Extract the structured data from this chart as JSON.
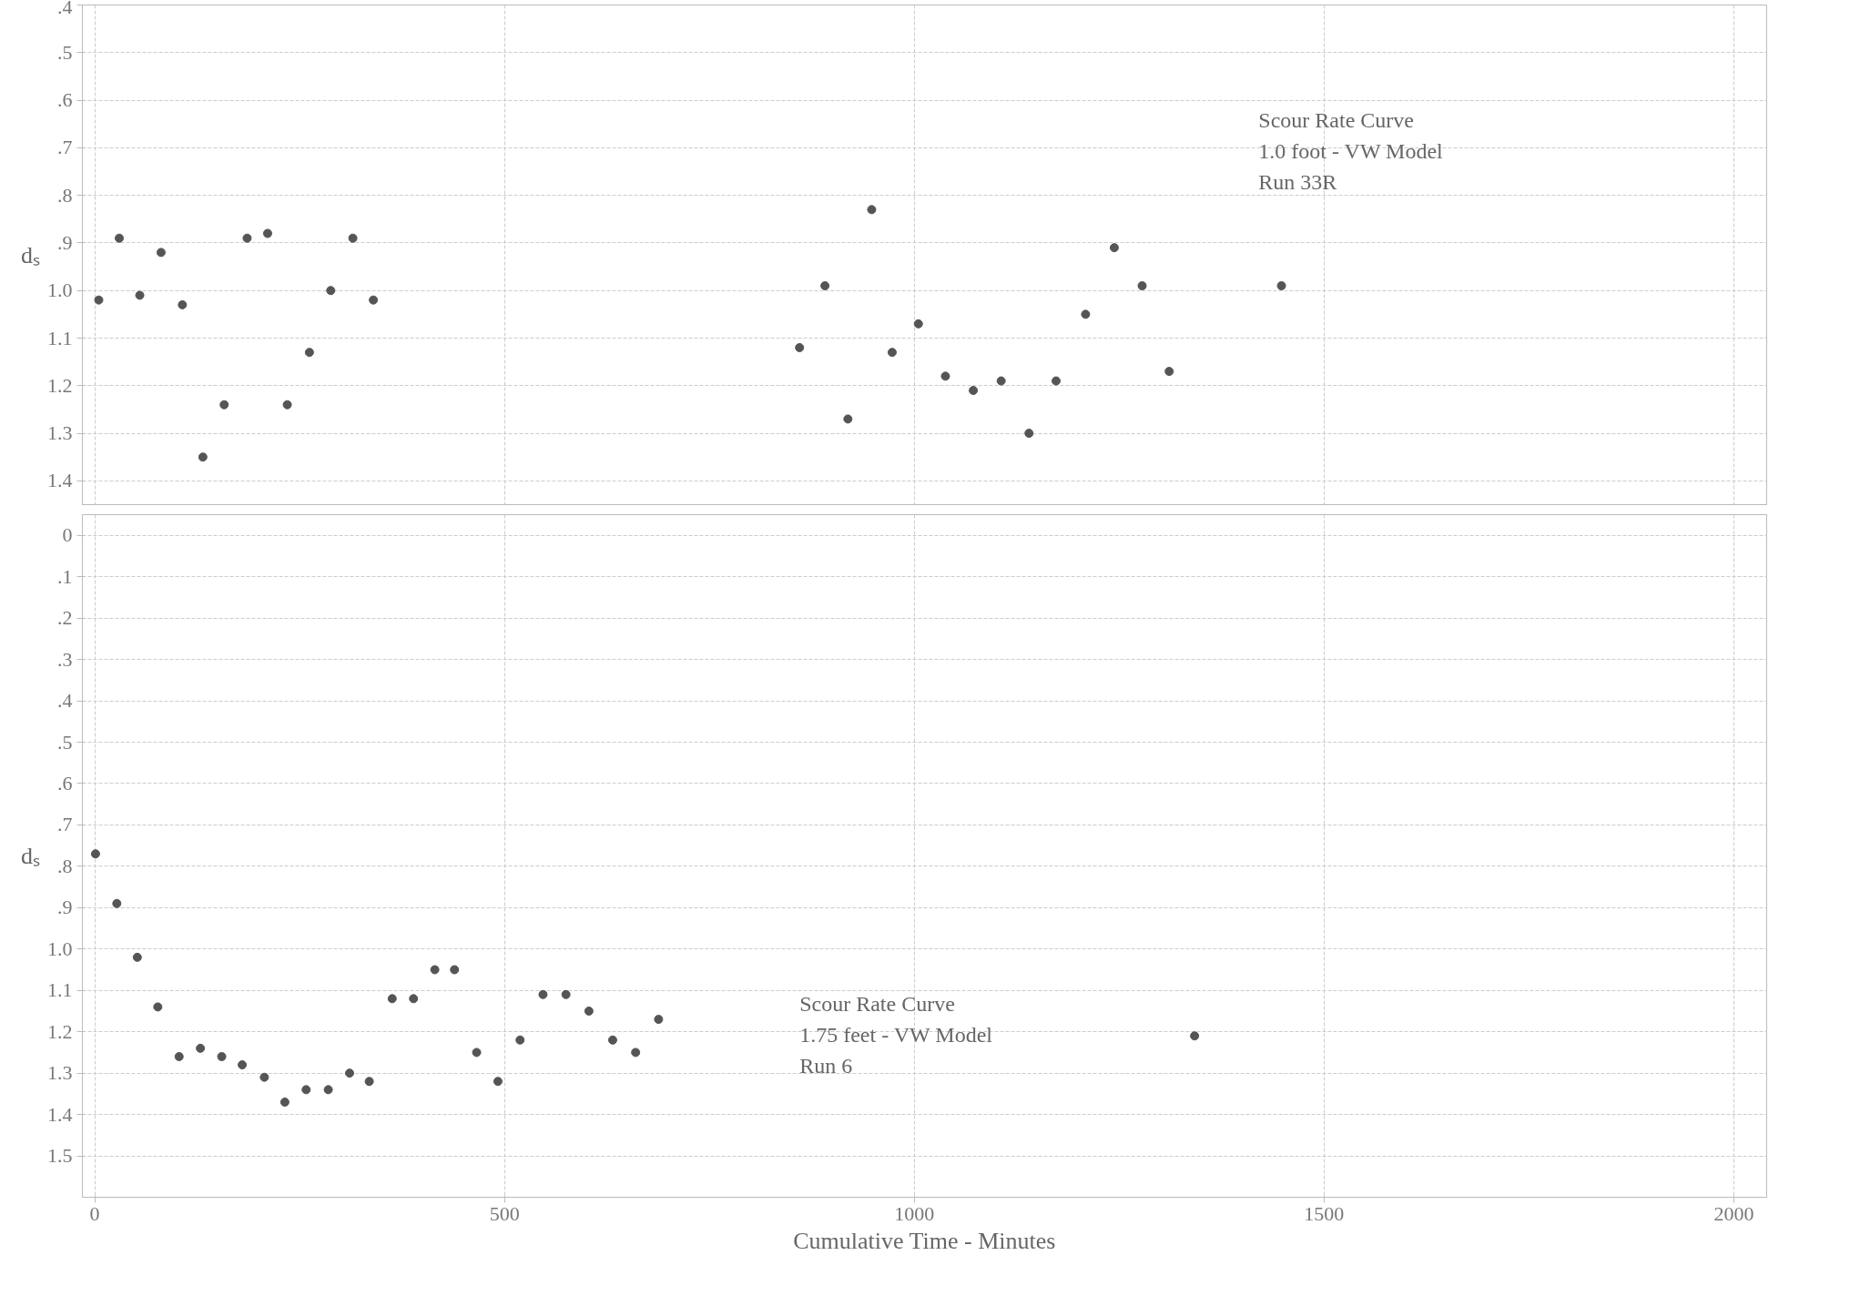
{
  "chart_data": [
    {
      "type": "scatter",
      "ylabel": "dₛ",
      "marker": "circle",
      "grid": true,
      "tick_labels": "y",
      "annotations": [
        "Scour Rate Curve",
        "1.0 foot - VW Model",
        "Run 33R"
      ],
      "xlim": [
        -15,
        2040
      ],
      "xticks": [
        0,
        500,
        1000,
        1500,
        2000
      ],
      "ylim": [
        1.45,
        0.4
      ],
      "yticks": [
        {
          "value": 0.4,
          "label": ".4"
        },
        {
          "value": 0.5,
          "label": ".5"
        },
        {
          "value": 0.6,
          "label": ".6"
        },
        {
          "value": 0.7,
          "label": ".7"
        },
        {
          "value": 0.8,
          "label": ".8"
        },
        {
          "value": 0.9,
          "label": ".9"
        },
        {
          "value": 1.0,
          "label": "1.0"
        },
        {
          "value": 1.1,
          "label": "1.1"
        },
        {
          "value": 1.2,
          "label": "1.2"
        },
        {
          "value": 1.3,
          "label": "1.3"
        },
        {
          "value": 1.4,
          "label": "1.4"
        }
      ],
      "series": [
        {
          "color": "#555555",
          "x": [
            5,
            30,
            55,
            81,
            107,
            132,
            158,
            186,
            211,
            235,
            262,
            288,
            315,
            340,
            860,
            891,
            919,
            948,
            973,
            1005,
            1038,
            1072,
            1106,
            1140,
            1173,
            1209,
            1244,
            1278,
            1311,
            1448
          ],
          "values": [
            1.02,
            0.89,
            1.01,
            0.92,
            1.03,
            1.35,
            1.24,
            0.89,
            0.88,
            1.24,
            1.13,
            1.0,
            0.89,
            1.02,
            1.12,
            0.99,
            1.27,
            0.83,
            1.13,
            1.07,
            1.18,
            1.21,
            1.19,
            1.3,
            1.19,
            1.05,
            0.91,
            0.99,
            1.17,
            0.99
          ]
        }
      ]
    },
    {
      "type": "scatter",
      "ylabel": "dₛ",
      "xlabel": "Cumulative Time - Minutes",
      "marker": "circle",
      "grid": true,
      "annotations": [
        "Scour Rate Curve",
        "1.75 feet - VW Model",
        "Run 6"
      ],
      "xlim": [
        -15,
        2040
      ],
      "xticks": [
        0,
        500,
        1000,
        1500,
        2000
      ],
      "ylim": [
        1.6,
        -0.05
      ],
      "yticks": [
        {
          "value": 0,
          "label": "0"
        },
        {
          "value": 0.1,
          "label": ".1"
        },
        {
          "value": 0.2,
          "label": ".2"
        },
        {
          "value": 0.3,
          "label": ".3"
        },
        {
          "value": 0.4,
          "label": ".4"
        },
        {
          "value": 0.5,
          "label": ".5"
        },
        {
          "value": 0.6,
          "label": ".6"
        },
        {
          "value": 0.7,
          "label": ".7"
        },
        {
          "value": 0.8,
          "label": ".8"
        },
        {
          "value": 0.9,
          "label": ".9"
        },
        {
          "value": 1.0,
          "label": "1.0"
        },
        {
          "value": 1.1,
          "label": "1.1"
        },
        {
          "value": 1.2,
          "label": "1.2"
        },
        {
          "value": 1.3,
          "label": "1.3"
        },
        {
          "value": 1.4,
          "label": "1.4"
        },
        {
          "value": 1.5,
          "label": "1.5"
        }
      ],
      "series": [
        {
          "color": "#555555",
          "x": [
            1,
            27,
            52,
            77,
            103,
            129,
            155,
            180,
            207,
            232,
            258,
            285,
            311,
            335,
            363,
            389,
            415,
            439,
            466,
            492,
            519,
            547,
            575,
            603,
            632,
            660,
            688,
            1342
          ],
          "values": [
            0.77,
            0.89,
            1.02,
            1.14,
            1.26,
            1.24,
            1.26,
            1.28,
            1.31,
            1.37,
            1.34,
            1.34,
            1.3,
            1.32,
            1.12,
            1.12,
            1.05,
            1.05,
            1.25,
            1.32,
            1.22,
            1.11,
            1.11,
            1.15,
            1.22,
            1.25,
            1.17,
            1.21
          ]
        }
      ]
    }
  ]
}
